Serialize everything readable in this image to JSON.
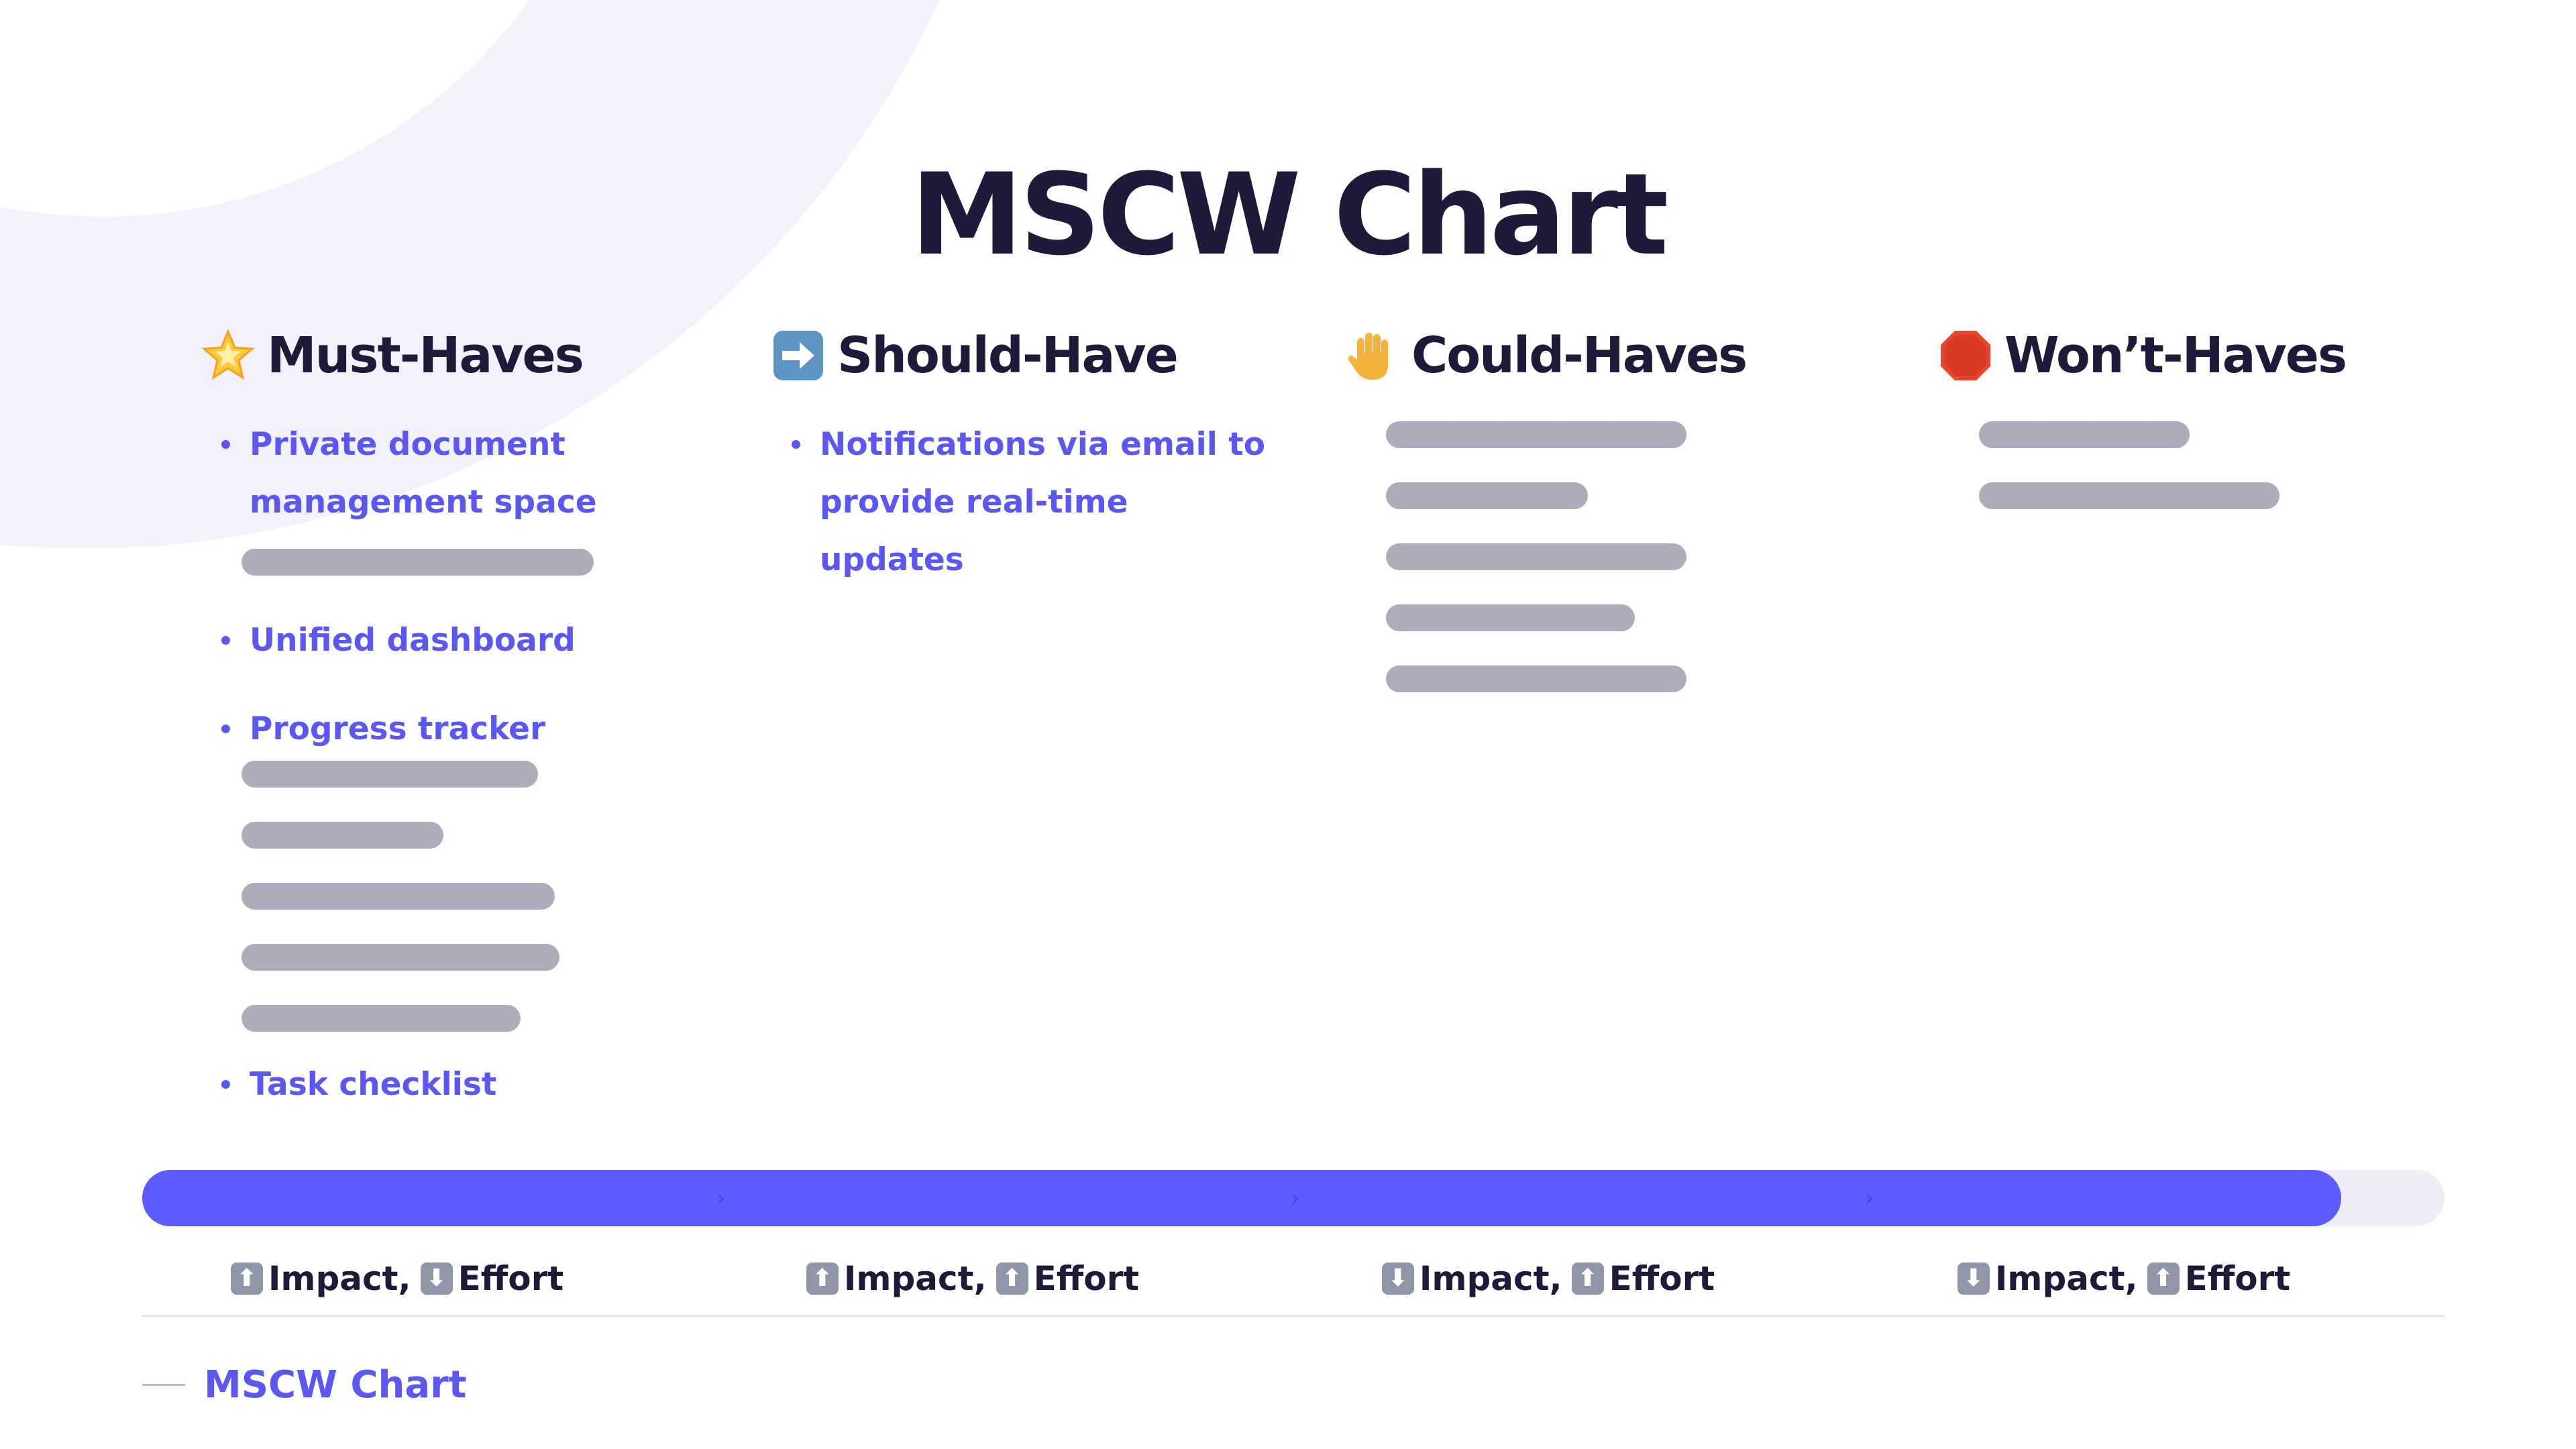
{
  "title": "MSCW Chart",
  "colors": {
    "accent": "#5b57f0",
    "progress": "#5b5bff",
    "bar": "#aeabbd",
    "track": "#efeef7",
    "heading": "#1e1b3a"
  },
  "progress": {
    "fraction": 0.955
  },
  "columns": [
    {
      "label": "Must-Haves",
      "icon": "glowing-star-icon",
      "items": [
        {
          "type": "text",
          "text": "Private document management space"
        },
        {
          "type": "bar",
          "length": 0.82
        },
        {
          "type": "text",
          "text": "Unified dashboard"
        },
        {
          "type": "text",
          "text": "Progress tracker"
        },
        {
          "type": "bar",
          "length": 0.69
        },
        {
          "type": "bar",
          "length": 0.47
        },
        {
          "type": "bar",
          "length": 0.73
        },
        {
          "type": "bar",
          "length": 0.74
        },
        {
          "type": "bar",
          "length": 0.65
        },
        {
          "type": "text",
          "text": "Task checklist"
        }
      ],
      "impact": {
        "impact_dir": "up",
        "impact_label": "Impact,",
        "effort_dir": "down",
        "effort_label": "Effort"
      }
    },
    {
      "label": "Should-Have",
      "icon": "right-arrow-icon",
      "items": [
        {
          "type": "text",
          "text": "Notifications via email to provide real-time updates"
        }
      ],
      "impact": {
        "impact_dir": "up",
        "impact_label": "Impact,",
        "effort_dir": "up",
        "effort_label": "Effort"
      }
    },
    {
      "label": "Could-Haves",
      "icon": "raised-hand-icon",
      "items": [
        {
          "type": "bar",
          "length": 0.7
        },
        {
          "type": "bar",
          "length": 0.47
        },
        {
          "type": "bar",
          "length": 0.7
        },
        {
          "type": "bar",
          "length": 0.58
        },
        {
          "type": "bar",
          "length": 0.7
        }
      ],
      "impact": {
        "impact_dir": "down",
        "impact_label": "Impact,",
        "effort_dir": "up",
        "effort_label": "Effort"
      }
    },
    {
      "label": "Won’t-Haves",
      "icon": "stop-sign-icon",
      "items": [
        {
          "type": "bar",
          "length": 0.49
        },
        {
          "type": "bar",
          "length": 0.7
        }
      ],
      "impact": {
        "impact_dir": "down",
        "impact_label": "Impact,",
        "effort_dir": "up",
        "effort_label": "Effort"
      }
    }
  ],
  "footer": {
    "label": "MSCW Chart"
  }
}
